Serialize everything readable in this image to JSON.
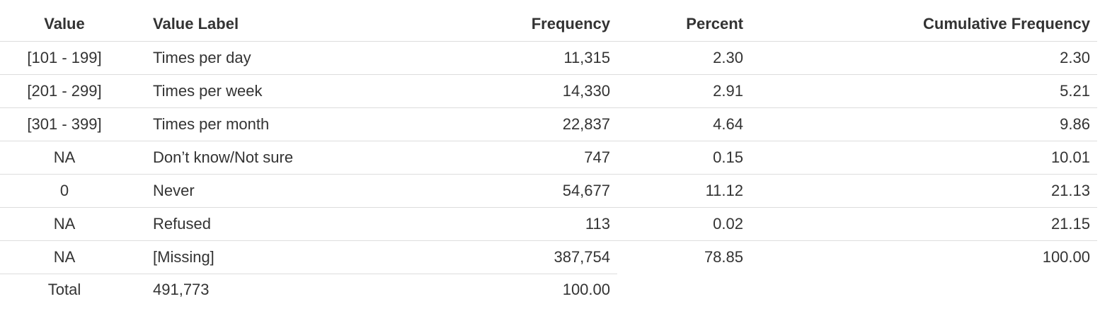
{
  "table": {
    "headers": {
      "value": "Value",
      "value_label": "Value Label",
      "frequency": "Frequency",
      "percent": "Percent",
      "cumulative_frequency": "Cumulative Frequency"
    },
    "rows": [
      {
        "value": "[101 - 199]",
        "value_label": "Times per day",
        "frequency": "11,315",
        "percent": "2.30",
        "cumulative": "2.30"
      },
      {
        "value": "[201 - 299]",
        "value_label": "Times per week",
        "frequency": "14,330",
        "percent": "2.91",
        "cumulative": "5.21"
      },
      {
        "value": "[301 - 399]",
        "value_label": "Times per month",
        "frequency": "22,837",
        "percent": "4.64",
        "cumulative": "9.86"
      },
      {
        "value": "NA",
        "value_label": "Don’t know/Not sure",
        "frequency": "747",
        "percent": "0.15",
        "cumulative": "10.01"
      },
      {
        "value": "0",
        "value_label": "Never",
        "frequency": "54,677",
        "percent": "11.12",
        "cumulative": "21.13"
      },
      {
        "value": "NA",
        "value_label": "Refused",
        "frequency": "113",
        "percent": "0.02",
        "cumulative": "21.15"
      },
      {
        "value": "NA",
        "value_label": "[Missing]",
        "frequency": "387,754",
        "percent": "78.85",
        "cumulative": "100.00"
      }
    ],
    "total": {
      "value": "Total",
      "value_label": "491,773",
      "frequency": "100.00"
    }
  }
}
